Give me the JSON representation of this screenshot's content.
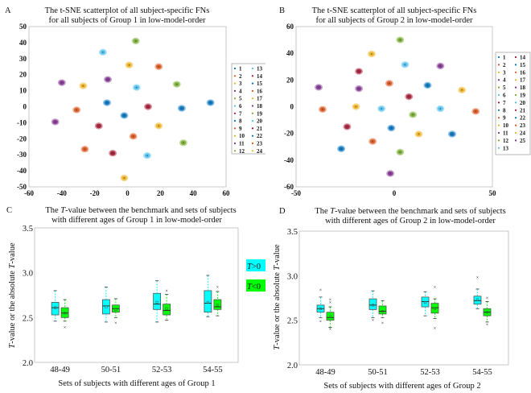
{
  "palette": [
    "#0072BD",
    "#D95319",
    "#EDB120",
    "#7E2F8E",
    "#77AC30",
    "#4DBEEE",
    "#A2142F"
  ],
  "chart_data": [
    {
      "panel": "A",
      "type": "scatter",
      "title_line1": "The t-SNE scatterplot of all subject-specific FNs",
      "title_line2": "for all subjects of Group 1 in low-model-order",
      "xlim": [
        -60,
        60
      ],
      "ylim": [
        -50,
        50
      ],
      "xticks": [
        "-60",
        "-40",
        "-20",
        "0",
        "20",
        "40",
        "60"
      ],
      "yticks": [
        "50",
        "40",
        "30",
        "20",
        "10",
        "0",
        "-10",
        "-20",
        "-30",
        "-40",
        "-50"
      ],
      "legend": [
        "1",
        "2",
        "3",
        "4",
        "5",
        "6",
        "7",
        "8",
        "9",
        "10",
        "11",
        "12",
        "13",
        "14",
        "15",
        "16",
        "17",
        "18",
        "19",
        "20",
        "21",
        "22",
        "23",
        "24"
      ],
      "legend_placement": "right",
      "clusters": [
        {
          "x": 5,
          "y": 41,
          "c": 4
        },
        {
          "x": -15,
          "y": 34,
          "c": 5
        },
        {
          "x": 1,
          "y": 26,
          "c": 2
        },
        {
          "x": 19,
          "y": 25,
          "c": 1
        },
        {
          "x": -40,
          "y": 15,
          "c": 3
        },
        {
          "x": -27,
          "y": 13,
          "c": 2
        },
        {
          "x": -12,
          "y": 17,
          "c": 3
        },
        {
          "x": 5.5,
          "y": 12,
          "c": 5
        },
        {
          "x": 30,
          "y": 14,
          "c": 4
        },
        {
          "x": -12.5,
          "y": 2.5,
          "c": 0
        },
        {
          "x": -31,
          "y": -2,
          "c": 1
        },
        {
          "x": 12.5,
          "y": 0,
          "c": 6
        },
        {
          "x": 33,
          "y": -1,
          "c": 0
        },
        {
          "x": 50.5,
          "y": 2.5,
          "c": 0
        },
        {
          "x": -2,
          "y": -5.5,
          "c": 0
        },
        {
          "x": -44,
          "y": -9.5,
          "c": 3
        },
        {
          "x": -17.5,
          "y": -12,
          "c": 6
        },
        {
          "x": 19,
          "y": -12,
          "c": 2
        },
        {
          "x": 3.5,
          "y": -18.5,
          "c": 1
        },
        {
          "x": 34,
          "y": -22.5,
          "c": 4
        },
        {
          "x": -26,
          "y": -26.5,
          "c": 1
        },
        {
          "x": -9,
          "y": -29,
          "c": 6
        },
        {
          "x": 12,
          "y": -30.5,
          "c": 5
        },
        {
          "x": -2,
          "y": -44.5,
          "c": 2
        }
      ]
    },
    {
      "panel": "B",
      "type": "scatter",
      "title_line1": "The t-SNE scatterplot of all subject-specific FNs",
      "title_line2": "for all subjects of Group 2 in low-model-order",
      "xlim": [
        -50,
        50
      ],
      "ylim": [
        -60,
        60
      ],
      "xticks": [
        "-50",
        "0",
        "50"
      ],
      "yticks": [
        "60",
        "40",
        "20",
        "0",
        "-20",
        "-40",
        "-60"
      ],
      "legend": [
        "1",
        "2",
        "3",
        "4",
        "5",
        "6",
        "7",
        "8",
        "9",
        "10",
        "11",
        "12",
        "13",
        "14",
        "15",
        "16",
        "17",
        "18",
        "19",
        "20",
        "21",
        "22",
        "23",
        "24",
        "25"
      ],
      "legend_placement": "right",
      "clusters": [
        {
          "x": 3,
          "y": 50,
          "c": 4
        },
        {
          "x": -11.5,
          "y": 39.5,
          "c": 2
        },
        {
          "x": 5.5,
          "y": 31.5,
          "c": 5
        },
        {
          "x": -18,
          "y": 26.5,
          "c": 6
        },
        {
          "x": 23.5,
          "y": 30.5,
          "c": 3
        },
        {
          "x": -38.5,
          "y": 14.5,
          "c": 3
        },
        {
          "x": -18,
          "y": 13.5,
          "c": 3
        },
        {
          "x": -2.5,
          "y": 17.5,
          "c": 1
        },
        {
          "x": 17,
          "y": 16,
          "c": 0
        },
        {
          "x": 34.5,
          "y": 12.5,
          "c": 2
        },
        {
          "x": 7.5,
          "y": 7.5,
          "c": 6
        },
        {
          "x": -36.5,
          "y": -2,
          "c": 1
        },
        {
          "x": -19.5,
          "y": 0,
          "c": 2
        },
        {
          "x": -6.5,
          "y": -1.5,
          "c": 5
        },
        {
          "x": 9.5,
          "y": -6,
          "c": 4
        },
        {
          "x": 23.5,
          "y": -1.5,
          "c": 5
        },
        {
          "x": 41.5,
          "y": -3.5,
          "c": 1
        },
        {
          "x": -24,
          "y": -15,
          "c": 6
        },
        {
          "x": -1.5,
          "y": -16,
          "c": 0
        },
        {
          "x": 12.5,
          "y": -20.5,
          "c": 2
        },
        {
          "x": 29.5,
          "y": -20.5,
          "c": 0
        },
        {
          "x": -11,
          "y": -26,
          "c": 1
        },
        {
          "x": -27,
          "y": -31.5,
          "c": 0
        },
        {
          "x": 3,
          "y": -34,
          "c": 4
        },
        {
          "x": -2,
          "y": -50,
          "c": 3
        }
      ]
    },
    {
      "panel": "C",
      "type": "box",
      "title_pre": "The ",
      "title_T": "T",
      "title_post": "-value between the benchmark and sets of subjects",
      "title_line2": "with different ages of Group 1 in low-model-order",
      "ylabel_T1": "T",
      "ylabel_mid": "-value or the absolute ",
      "ylabel_T2": "T",
      "ylabel_end": "-value",
      "xlabel": "Sets of subjects with different ages of Group 1",
      "ylim": [
        2.0,
        3.5
      ],
      "yticks": [
        "3.5",
        "3.0",
        "2.5",
        "2.0"
      ],
      "categories": [
        "48-49",
        "50-51",
        "52-53",
        "54-55"
      ],
      "legend": [
        {
          "pre": "T",
          "post": ">0",
          "color": "#00FFFF"
        },
        {
          "pre": "T",
          "post": "<0",
          "color": "#00FF00"
        }
      ],
      "series": [
        {
          "name": "T>0",
          "color": "#00FFFF",
          "boxes": [
            {
              "low": 2.46,
              "q1": 2.53,
              "med": 2.61,
              "q3": 2.67,
              "high": 2.8,
              "mean": 2.61,
              "outliers": []
            },
            {
              "low": 2.45,
              "q1": 2.54,
              "med": 2.63,
              "q3": 2.7,
              "high": 2.84,
              "mean": 2.62,
              "outliers": []
            },
            {
              "low": 2.45,
              "q1": 2.59,
              "med": 2.65,
              "q3": 2.77,
              "high": 2.91,
              "mean": 2.67,
              "outliers": []
            },
            {
              "low": 2.51,
              "q1": 2.56,
              "med": 2.66,
              "q3": 2.8,
              "high": 2.97,
              "mean": 2.67,
              "outliers": []
            }
          ]
        },
        {
          "name": "T<0",
          "color": "#00FF00",
          "boxes": [
            {
              "low": 2.46,
              "q1": 2.5,
              "med": 2.55,
              "q3": 2.61,
              "high": 2.7,
              "mean": 2.55,
              "outliers": [
                2.39
              ]
            },
            {
              "low": 2.5,
              "q1": 2.56,
              "med": 2.6,
              "q3": 2.64,
              "high": 2.71,
              "mean": 2.59,
              "outliers": [
                2.44
              ]
            },
            {
              "low": 2.47,
              "q1": 2.53,
              "med": 2.58,
              "q3": 2.65,
              "high": 2.76,
              "mean": 2.6,
              "outliers": [
                2.8
              ]
            },
            {
              "low": 2.52,
              "q1": 2.59,
              "med": 2.62,
              "q3": 2.7,
              "high": 2.79,
              "mean": 2.64,
              "outliers": [
                2.84
              ]
            }
          ]
        }
      ]
    },
    {
      "panel": "D",
      "type": "box",
      "title_pre": "The ",
      "title_T": "T",
      "title_post": "-value between the benchmark and sets of subjects",
      "title_line2": "with different ages of Group 2 in low-model-order",
      "ylabel_T1": "T",
      "ylabel_mid": "-value or the absolute ",
      "ylabel_T2": "T",
      "ylabel_end": "-value",
      "xlabel": "Sets of subjects with different ages of Group 2",
      "ylim": [
        2.0,
        3.5
      ],
      "yticks": [
        "3.5",
        "3.0",
        "2.5",
        "2.0"
      ],
      "categories": [
        "48-49",
        "50-51",
        "52-53",
        "54-55"
      ],
      "series": [
        {
          "name": "T>0",
          "color": "#00FFFF",
          "boxes": [
            {
              "low": 2.53,
              "q1": 2.59,
              "med": 2.63,
              "q3": 2.67,
              "high": 2.76,
              "mean": 2.63,
              "outliers": [
                2.84,
                2.49
              ]
            },
            {
              "low": 2.53,
              "q1": 2.62,
              "med": 2.67,
              "q3": 2.74,
              "high": 2.83,
              "mean": 2.67,
              "outliers": [
                2.5
              ]
            },
            {
              "low": 2.55,
              "q1": 2.65,
              "med": 2.71,
              "q3": 2.76,
              "high": 2.82,
              "mean": 2.7,
              "outliers": []
            },
            {
              "low": 2.63,
              "q1": 2.68,
              "med": 2.72,
              "q3": 2.77,
              "high": 2.85,
              "mean": 2.73,
              "outliers": [
                2.98
              ]
            }
          ]
        },
        {
          "name": "T<0",
          "color": "#00FF00",
          "boxes": [
            {
              "low": 2.42,
              "q1": 2.5,
              "med": 2.53,
              "q3": 2.59,
              "high": 2.65,
              "mean": 2.54,
              "outliers": [
                2.73,
                2.7,
                2.4
              ]
            },
            {
              "low": 2.53,
              "q1": 2.57,
              "med": 2.6,
              "q3": 2.66,
              "high": 2.72,
              "mean": 2.6,
              "outliers": [
                2.47
              ]
            },
            {
              "low": 2.52,
              "q1": 2.58,
              "med": 2.64,
              "q3": 2.69,
              "high": 2.74,
              "mean": 2.63,
              "outliers": [
                2.87,
                2.41
              ]
            },
            {
              "low": 2.48,
              "q1": 2.55,
              "med": 2.59,
              "q3": 2.63,
              "high": 2.71,
              "mean": 2.59,
              "outliers": [
                2.75,
                2.45
              ]
            }
          ]
        }
      ]
    }
  ],
  "panel_labels": [
    "A",
    "B",
    "C",
    "D"
  ]
}
